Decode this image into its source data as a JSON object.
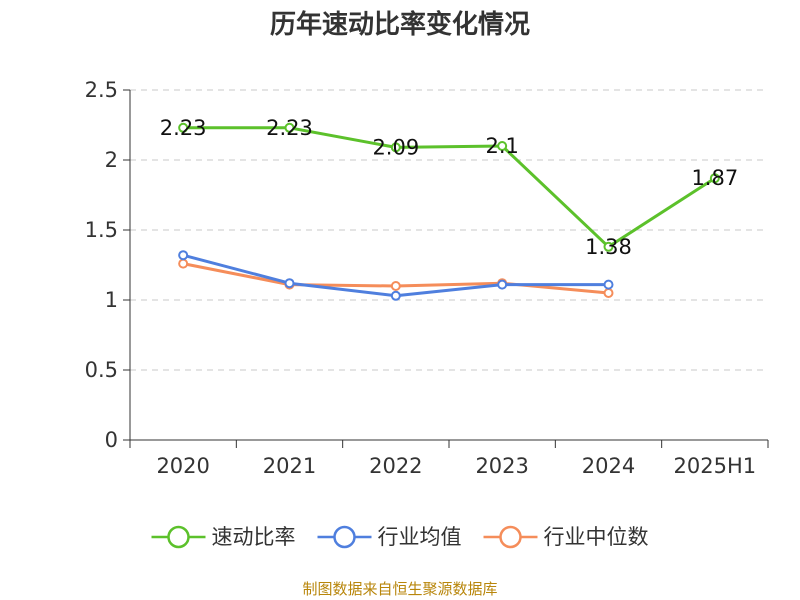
{
  "chart_data": {
    "type": "line",
    "title": "历年速动比率变化情况",
    "categories": [
      "2020",
      "2021",
      "2022",
      "2023",
      "2024",
      "2025H1"
    ],
    "ylim": [
      0,
      2.5
    ],
    "yticks": [
      {
        "value": 0,
        "label": "0"
      },
      {
        "value": 0.5,
        "label": "0.5"
      },
      {
        "value": 1,
        "label": "1"
      },
      {
        "value": 1.5,
        "label": "1.5"
      },
      {
        "value": 2,
        "label": "2"
      },
      {
        "value": 2.5,
        "label": "2.5"
      }
    ],
    "grid": true,
    "legend_position": "bottom",
    "series": [
      {
        "name": "速动比率",
        "color": "#5cc12b",
        "values": [
          2.23,
          2.23,
          2.09,
          2.1,
          1.38,
          1.87
        ],
        "labels": [
          "2.23",
          "2.23",
          "2.09",
          "2.1",
          "1.38",
          "1.87"
        ],
        "show_labels": true
      },
      {
        "name": "行业均值",
        "color": "#4f7fde",
        "values": [
          1.32,
          1.12,
          1.03,
          1.11,
          1.11,
          null
        ],
        "show_labels": false
      },
      {
        "name": "行业中位数",
        "color": "#f58d5a",
        "values": [
          1.26,
          1.11,
          1.1,
          1.12,
          1.05,
          null
        ],
        "show_labels": false
      }
    ],
    "source": "制图数据来自恒生聚源数据库"
  }
}
